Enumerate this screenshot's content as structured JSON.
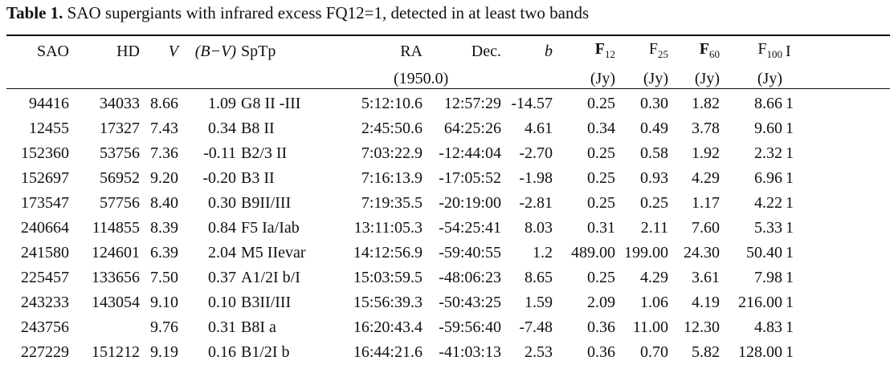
{
  "caption": {
    "label": "Table 1.",
    "text": " SAO supergiants with infrared excess FQ12=1, detected in at least two bands"
  },
  "columns": {
    "sao": "SAO",
    "hd": "HD",
    "v": "V",
    "bv": "(B−V)",
    "sptp": "SpTp",
    "ra": "RA",
    "dec": "Dec.",
    "epoch": "(1950.0)",
    "b": "b",
    "f12": "F",
    "f12_sub": "12",
    "f25": "F",
    "f25_sub": "25",
    "f60": "F",
    "f60_sub": "60",
    "f100": "F",
    "f100_sub": "100",
    "unit": "(Jy)",
    "cut": "I"
  },
  "rows": [
    {
      "sao": "94416",
      "hd": "34033",
      "v": "8.66",
      "bv": "1.09",
      "sptp": "G8 II -III",
      "ra": "5:12:10.6",
      "dec": "12:57:29",
      "b": "-14.57",
      "f12": "0.25",
      "f25": "0.30",
      "f60": "1.82",
      "f100": "8.66",
      "cut": "1"
    },
    {
      "sao": "12455",
      "hd": "17327",
      "v": "7.43",
      "bv": "0.34",
      "sptp": "B8 II",
      "ra": "2:45:50.6",
      "dec": "64:25:26",
      "b": "4.61",
      "f12": "0.34",
      "f25": "0.49",
      "f60": "3.78",
      "f100": "9.60",
      "cut": "1"
    },
    {
      "sao": "152360",
      "hd": "53756",
      "v": "7.36",
      "bv": "-0.11",
      "sptp": "B2/3 II",
      "ra": "7:03:22.9",
      "dec": "-12:44:04",
      "b": "-2.70",
      "f12": "0.25",
      "f25": "0.58",
      "f60": "1.92",
      "f100": "2.32",
      "cut": "1"
    },
    {
      "sao": "152697",
      "hd": "56952",
      "v": "9.20",
      "bv": "-0.20",
      "sptp": "B3 II",
      "ra": "7:16:13.9",
      "dec": "-17:05:52",
      "b": "-1.98",
      "f12": "0.25",
      "f25": "0.93",
      "f60": "4.29",
      "f100": "6.96",
      "cut": "1"
    },
    {
      "sao": "173547",
      "hd": "57756",
      "v": "8.40",
      "bv": "0.30",
      "sptp": "B9II/III",
      "ra": "7:19:35.5",
      "dec": "-20:19:00",
      "b": "-2.81",
      "f12": "0.25",
      "f25": "0.25",
      "f60": "1.17",
      "f100": "4.22",
      "cut": "1"
    },
    {
      "sao": "240664",
      "hd": "114855",
      "v": "8.39",
      "bv": "0.84",
      "sptp": "F5 Ia/Iab",
      "ra": "13:11:05.3",
      "dec": "-54:25:41",
      "b": "8.03",
      "f12": "0.31",
      "f25": "2.11",
      "f60": "7.60",
      "f100": "5.33",
      "cut": "1"
    },
    {
      "sao": "241580",
      "hd": "124601",
      "v": "6.39",
      "bv": "2.04",
      "sptp": "M5 IIevar",
      "ra": "14:12:56.9",
      "dec": "-59:40:55",
      "b": "1.2",
      "f12": "489.00",
      "f25": "199.00",
      "f60": "24.30",
      "f100": "50.40",
      "cut": "1"
    },
    {
      "sao": "225457",
      "hd": "133656",
      "v": "7.50",
      "bv": "0.37",
      "sptp": "A1/2I b/I",
      "ra": "15:03:59.5",
      "dec": "-48:06:23",
      "b": "8.65",
      "f12": "0.25",
      "f25": "4.29",
      "f60": "3.61",
      "f100": "7.98",
      "cut": "1"
    },
    {
      "sao": "243233",
      "hd": "143054",
      "v": "9.10",
      "bv": "0.10",
      "sptp": "B3II/III",
      "ra": "15:56:39.3",
      "dec": "-50:43:25",
      "b": "1.59",
      "f12": "2.09",
      "f25": "1.06",
      "f60": "4.19",
      "f100": "216.00",
      "cut": "1"
    },
    {
      "sao": "243756",
      "hd": "",
      "v": "9.76",
      "bv": "0.31",
      "sptp": "B8I a",
      "ra": "16:20:43.4",
      "dec": "-59:56:40",
      "b": "-7.48",
      "f12": "0.36",
      "f25": "11.00",
      "f60": "12.30",
      "f100": "4.83",
      "cut": "1"
    },
    {
      "sao": "227229",
      "hd": "151212",
      "v": "9.19",
      "bv": "0.16",
      "sptp": "B1/2I b",
      "ra": "16:44:21.6",
      "dec": "-41:03:13",
      "b": "2.53",
      "f12": "0.36",
      "f25": "0.70",
      "f60": "5.82",
      "f100": "128.00",
      "cut": "1"
    }
  ]
}
